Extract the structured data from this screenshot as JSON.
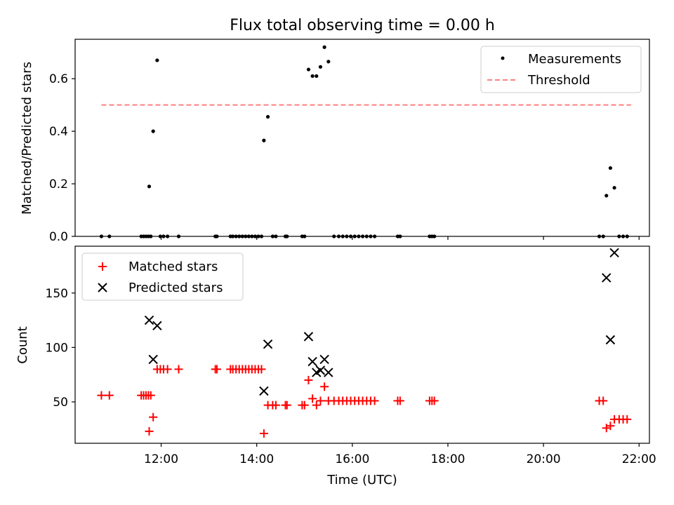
{
  "title": "Flux total observing time = 0.00 h",
  "chart_data": [
    {
      "type": "scatter",
      "panel": "top",
      "title": "Flux total observing time = 0.00 h",
      "ylabel": "Matched/Predicted stars",
      "xlabel": "",
      "ylim": [
        0,
        0.75
      ],
      "yticks": [
        0.0,
        0.2,
        0.4,
        0.6
      ],
      "ytick_labels": [
        "0.0",
        "0.2",
        "0.4",
        "0.6"
      ],
      "grid": false,
      "legend_position": "top-right",
      "legend": [
        {
          "label": "Measurements",
          "marker": "dot",
          "color": "#000000"
        },
        {
          "label": "Threshold",
          "marker": "dashed-line",
          "color": "#ff7f7f"
        }
      ],
      "threshold": {
        "y": 0.5,
        "x_start": "10:45",
        "x_end": "21:50",
        "color": "#ff7f7f"
      },
      "series": [
        {
          "name": "Measurements",
          "marker": "dot",
          "color": "#000000",
          "points": [
            [
              "10:45",
              0.0
            ],
            [
              "10:55",
              0.0
            ],
            [
              "11:35",
              0.0
            ],
            [
              "11:38",
              0.0
            ],
            [
              "11:41",
              0.0
            ],
            [
              "11:44",
              0.0
            ],
            [
              "11:47",
              0.0
            ],
            [
              "11:45",
              0.19
            ],
            [
              "11:50",
              0.4
            ],
            [
              "11:55",
              0.67
            ],
            [
              "11:59",
              0.0
            ],
            [
              "12:03",
              0.0
            ],
            [
              "12:08",
              0.0
            ],
            [
              "12:22",
              0.0
            ],
            [
              "13:08",
              0.0
            ],
            [
              "13:10",
              0.0
            ],
            [
              "13:27",
              0.0
            ],
            [
              "13:30",
              0.0
            ],
            [
              "13:34",
              0.0
            ],
            [
              "13:38",
              0.0
            ],
            [
              "13:42",
              0.0
            ],
            [
              "13:46",
              0.0
            ],
            [
              "13:50",
              0.0
            ],
            [
              "13:54",
              0.0
            ],
            [
              "13:58",
              0.0
            ],
            [
              "14:02",
              0.0
            ],
            [
              "14:06",
              0.0
            ],
            [
              "14:09",
              0.365
            ],
            [
              "14:14",
              0.455
            ],
            [
              "14:20",
              0.0
            ],
            [
              "14:24",
              0.0
            ],
            [
              "14:36",
              0.0
            ],
            [
              "14:38",
              0.0
            ],
            [
              "14:57",
              0.0
            ],
            [
              "15:00",
              0.0
            ],
            [
              "15:05",
              0.635
            ],
            [
              "15:10",
              0.61
            ],
            [
              "15:15",
              0.61
            ],
            [
              "15:20",
              0.645
            ],
            [
              "15:25",
              0.72
            ],
            [
              "15:30",
              0.665
            ],
            [
              "15:37",
              0.0
            ],
            [
              "15:43",
              0.0
            ],
            [
              "15:48",
              0.0
            ],
            [
              "15:53",
              0.0
            ],
            [
              "15:58",
              0.0
            ],
            [
              "16:03",
              0.0
            ],
            [
              "16:08",
              0.0
            ],
            [
              "16:13",
              0.0
            ],
            [
              "16:18",
              0.0
            ],
            [
              "16:23",
              0.0
            ],
            [
              "16:28",
              0.0
            ],
            [
              "16:57",
              0.0
            ],
            [
              "17:00",
              0.0
            ],
            [
              "17:37",
              0.0
            ],
            [
              "17:40",
              0.0
            ],
            [
              "17:43",
              0.0
            ],
            [
              "21:10",
              0.0
            ],
            [
              "21:15",
              0.0
            ],
            [
              "21:19",
              0.155
            ],
            [
              "21:24",
              0.26
            ],
            [
              "21:29",
              0.185
            ],
            [
              "21:35",
              0.0
            ],
            [
              "21:40",
              0.0
            ],
            [
              "21:45",
              0.0
            ]
          ]
        }
      ]
    },
    {
      "type": "scatter",
      "panel": "bottom",
      "title": "",
      "xlabel": "Time (UTC)",
      "ylabel": "Count",
      "ylim": [
        12,
        193
      ],
      "yticks": [
        50,
        100,
        150
      ],
      "ytick_labels": [
        "50",
        "100",
        "150"
      ],
      "xlim": [
        "10:12",
        "22:13"
      ],
      "xticks": [
        "12:00",
        "14:00",
        "16:00",
        "18:00",
        "20:00",
        "22:00"
      ],
      "xtick_labels": [
        "12:00",
        "14:00",
        "16:00",
        "18:00",
        "20:00",
        "22:00"
      ],
      "grid": false,
      "legend_position": "top-left",
      "legend": [
        {
          "label": "Matched stars",
          "marker": "plus",
          "color": "#ff0000"
        },
        {
          "label": "Predicted stars",
          "marker": "x",
          "color": "#000000"
        }
      ],
      "series": [
        {
          "name": "Matched stars",
          "marker": "plus",
          "color": "#ff0000",
          "points": [
            [
              "10:45",
              56
            ],
            [
              "10:55",
              56
            ],
            [
              "11:35",
              56
            ],
            [
              "11:38",
              56
            ],
            [
              "11:41",
              56
            ],
            [
              "11:44",
              56
            ],
            [
              "11:47",
              56
            ],
            [
              "11:45",
              23
            ],
            [
              "11:50",
              36
            ],
            [
              "11:55",
              80
            ],
            [
              "11:59",
              80
            ],
            [
              "12:03",
              80
            ],
            [
              "12:08",
              80
            ],
            [
              "12:22",
              80
            ],
            [
              "13:08",
              80
            ],
            [
              "13:10",
              80
            ],
            [
              "13:27",
              80
            ],
            [
              "13:30",
              80
            ],
            [
              "13:34",
              80
            ],
            [
              "13:38",
              80
            ],
            [
              "13:42",
              80
            ],
            [
              "13:46",
              80
            ],
            [
              "13:50",
              80
            ],
            [
              "13:54",
              80
            ],
            [
              "13:58",
              80
            ],
            [
              "14:02",
              80
            ],
            [
              "14:06",
              80
            ],
            [
              "14:09",
              21
            ],
            [
              "14:14",
              47
            ],
            [
              "14:20",
              47
            ],
            [
              "14:24",
              47
            ],
            [
              "14:36",
              47
            ],
            [
              "14:38",
              47
            ],
            [
              "14:57",
              47
            ],
            [
              "15:00",
              47
            ],
            [
              "15:05",
              70
            ],
            [
              "15:10",
              53
            ],
            [
              "15:15",
              47
            ],
            [
              "15:20",
              51
            ],
            [
              "15:25",
              64
            ],
            [
              "15:30",
              51
            ],
            [
              "15:37",
              51
            ],
            [
              "15:43",
              51
            ],
            [
              "15:48",
              51
            ],
            [
              "15:53",
              51
            ],
            [
              "15:58",
              51
            ],
            [
              "16:03",
              51
            ],
            [
              "16:08",
              51
            ],
            [
              "16:13",
              51
            ],
            [
              "16:18",
              51
            ],
            [
              "16:23",
              51
            ],
            [
              "16:28",
              51
            ],
            [
              "16:57",
              51
            ],
            [
              "17:00",
              51
            ],
            [
              "17:37",
              51
            ],
            [
              "17:40",
              51
            ],
            [
              "17:43",
              51
            ],
            [
              "21:10",
              51
            ],
            [
              "21:15",
              51
            ],
            [
              "21:19",
              26
            ],
            [
              "21:24",
              28
            ],
            [
              "21:29",
              34
            ],
            [
              "21:35",
              34
            ],
            [
              "21:40",
              34
            ],
            [
              "21:45",
              34
            ]
          ]
        },
        {
          "name": "Predicted stars",
          "marker": "x",
          "color": "#000000",
          "points": [
            [
              "11:45",
              125
            ],
            [
              "11:50",
              89
            ],
            [
              "11:55",
              120
            ],
            [
              "14:09",
              60
            ],
            [
              "14:14",
              103
            ],
            [
              "15:05",
              110
            ],
            [
              "15:10",
              87
            ],
            [
              "15:15",
              77
            ],
            [
              "15:20",
              79
            ],
            [
              "15:25",
              89
            ],
            [
              "15:30",
              77
            ],
            [
              "21:19",
              164
            ],
            [
              "21:24",
              107
            ],
            [
              "21:29",
              187
            ]
          ]
        }
      ]
    }
  ]
}
